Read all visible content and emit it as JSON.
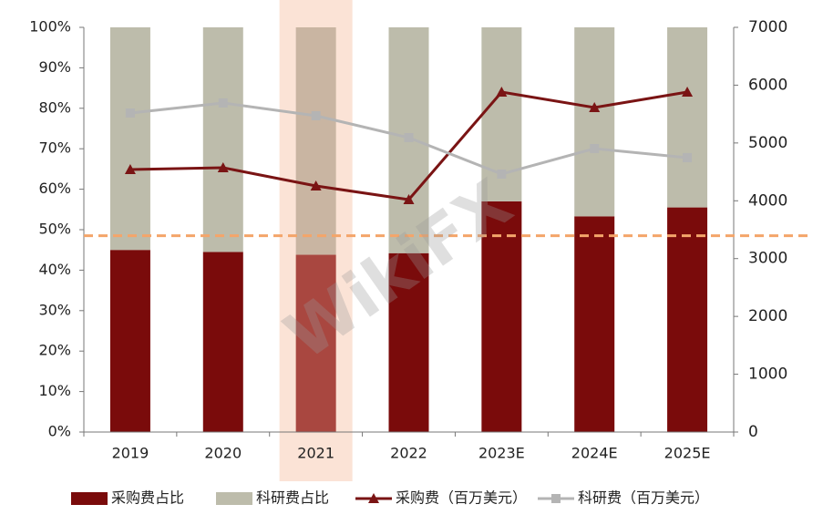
{
  "chart_data": {
    "type": "bar",
    "categories": [
      "2019",
      "2020",
      "2021",
      "2022",
      "2023E",
      "2024E",
      "2025E"
    ],
    "series": [
      {
        "name": "采购费占比",
        "type": "bar",
        "color": "#7a0b0b",
        "values": [
          45,
          44.5,
          43.8,
          44.2,
          57,
          53.3,
          55.5
        ]
      },
      {
        "name": "科研费占比",
        "type": "bar",
        "color": "#bdbcab",
        "values": [
          55,
          55.5,
          56.2,
          55.8,
          43,
          46.7,
          44.5
        ]
      },
      {
        "name": "采购费（百万美元）",
        "type": "line",
        "axis": "y2",
        "marker": "triangle",
        "color": "#7a1414",
        "values": [
          4540,
          4572,
          4257,
          4020,
          5880,
          5613,
          5880
        ]
      },
      {
        "name": "科研费（百万美元）",
        "type": "line",
        "axis": "y2",
        "marker": "square",
        "color": "#b4b4b4",
        "values": [
          5518,
          5692,
          5471,
          5092,
          4462,
          4903,
          4746
        ]
      }
    ],
    "ylim": [
      0,
      100
    ],
    "yticks": [
      {
        "value": 0,
        "label": "0%"
      },
      {
        "value": 10,
        "label": "10%"
      },
      {
        "value": 20,
        "label": "20%"
      },
      {
        "value": 30,
        "label": "30%"
      },
      {
        "value": 40,
        "label": "40%"
      },
      {
        "value": 50,
        "label": "50%"
      },
      {
        "value": 60,
        "label": "60%"
      },
      {
        "value": 70,
        "label": "70%"
      },
      {
        "value": 80,
        "label": "80%"
      },
      {
        "value": 90,
        "label": "90%"
      },
      {
        "value": 100,
        "label": "100%"
      }
    ],
    "y2lim": [
      0,
      7000
    ],
    "y2ticks": [
      0,
      1000,
      2000,
      3000,
      4000,
      5000,
      6000,
      7000
    ],
    "reference_line": {
      "value": 48.5,
      "color": "#f4a56a"
    },
    "highlight_index": 2,
    "highlight_color": "#fbe3d6",
    "legend": "bottom",
    "watermark": "WikiFX"
  }
}
